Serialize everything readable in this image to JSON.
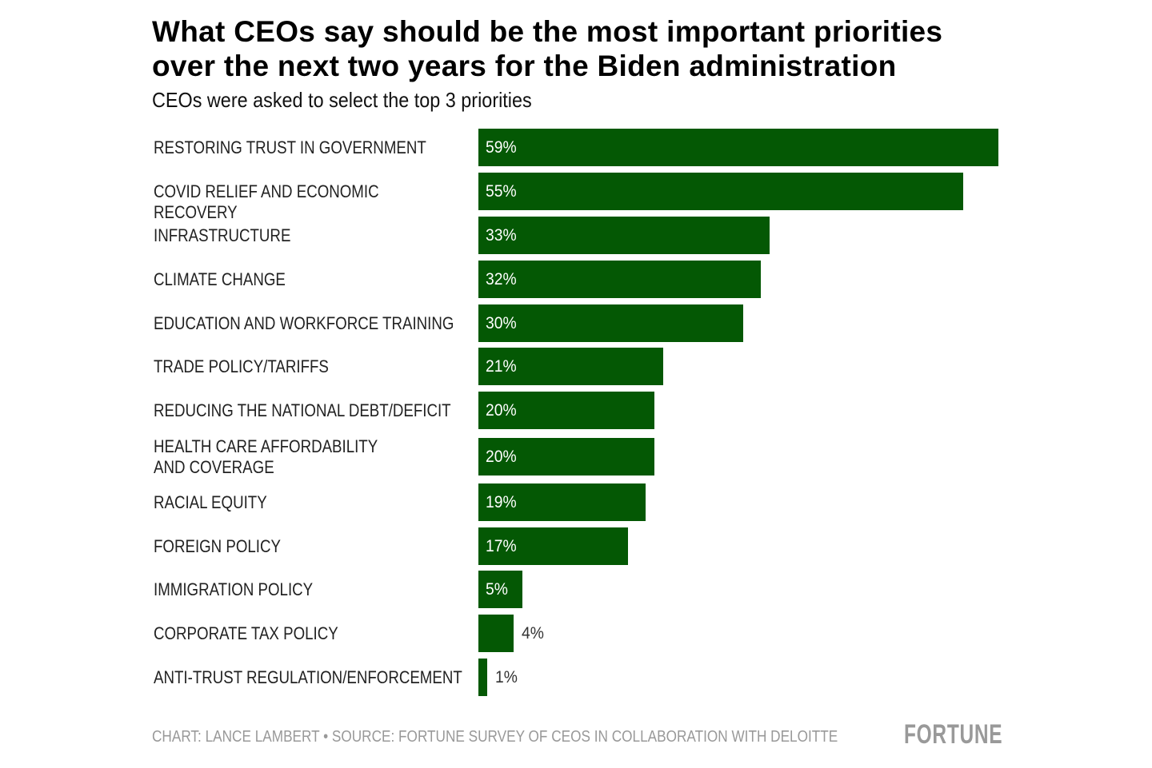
{
  "chart_data": {
    "type": "bar",
    "orientation": "horizontal",
    "title": "What CEOs say should be the most important priorities over the next two years for the Biden administration",
    "subtitle": "CEOs were asked to select the top 3 priorities",
    "categories": [
      "RESTORING TRUST IN GOVERNMENT",
      "COVID RELIEF AND ECONOMIC RECOVERY",
      "INFRASTRUCTURE",
      "CLIMATE CHANGE",
      "EDUCATION AND WORKFORCE TRAINING",
      "TRADE POLICY/TARIFFS",
      "REDUCING THE NATIONAL DEBT/DEFICIT",
      "HEALTH CARE AFFORDABILITY AND COVERAGE",
      "RACIAL EQUITY",
      "FOREIGN POLICY",
      "IMMIGRATION POLICY",
      "CORPORATE TAX POLICY",
      "ANTI-TRUST REGULATION/ENFORCEMENT"
    ],
    "values": [
      59,
      55,
      33,
      32,
      30,
      21,
      20,
      20,
      19,
      17,
      5,
      4,
      1
    ],
    "value_labels": [
      "59%",
      "55%",
      "33%",
      "32%",
      "30%",
      "21%",
      "20%",
      "20%",
      "19%",
      "17%",
      "5%",
      "4%",
      "1%"
    ],
    "xlim": [
      0,
      59
    ],
    "grid": false,
    "bar_color": "#045804"
  },
  "footer": {
    "credit": "CHART: LANCE LAMBERT • SOURCE: FORTUNE SURVEY OF CEOS IN COLLABORATION WITH DELOITTE",
    "logo": "FORTUNE"
  }
}
